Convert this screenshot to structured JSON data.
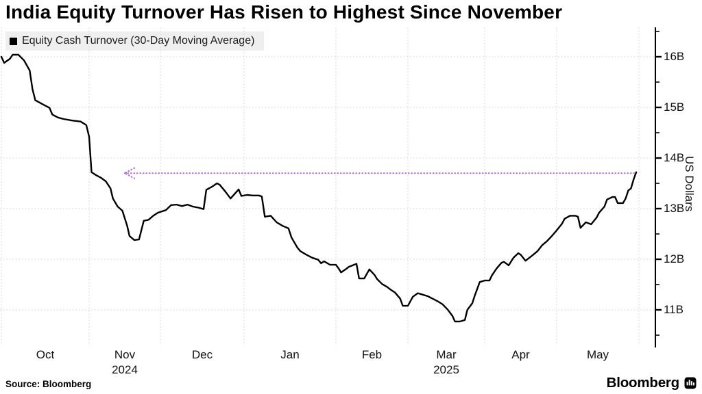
{
  "header": {
    "title": "India Equity Turnover Has Risen to Highest Since November"
  },
  "legend": {
    "swatch_color": "#000000",
    "label": "Equity Cash Turnover (30-Day Moving Average)"
  },
  "footer": {
    "source": "Source: Bloomberg",
    "brand": "Bloomberg",
    "brand_icon": "bloomberg-terminal-icon"
  },
  "chart_data": {
    "type": "line",
    "title": "India Equity Turnover Has Risen to Highest Since November",
    "ylabel": "US Dollars",
    "xlabel": "",
    "grid": "dotted",
    "legend_position": "top-left",
    "y_axis": {
      "side": "right",
      "min": 10.3,
      "max": 16.45,
      "unit": "B USD",
      "minor_tick_step": 0.5
    },
    "y_ticks": [
      {
        "value": 16,
        "label": "16B"
      },
      {
        "value": 15,
        "label": "15B"
      },
      {
        "value": 14,
        "label": "14B"
      },
      {
        "value": 13,
        "label": "13B"
      },
      {
        "value": 12,
        "label": "12B"
      },
      {
        "value": 11,
        "label": "11B"
      }
    ],
    "x_ticks": [
      {
        "label": "Oct",
        "year": "2024_start_implied"
      },
      {
        "label": "Nov",
        "year": "2024"
      },
      {
        "label": "Dec"
      },
      {
        "label": "Jan"
      },
      {
        "label": "Feb"
      },
      {
        "label": "Mar",
        "year": "2025"
      },
      {
        "label": "Apr"
      },
      {
        "label": "May"
      }
    ],
    "annotation": {
      "shape": "dotted-arrow-left",
      "y_value": 13.7,
      "x_head_date": "2024-11-16",
      "x_tail_date": "2025-05-31",
      "color": "#ae6fe0"
    },
    "series": [
      {
        "name": "Equity Cash Turnover (30-Day Moving Average)",
        "color": "#000000",
        "points": [
          [
            "2024-10-01",
            16.0
          ],
          [
            "2024-10-02",
            15.88
          ],
          [
            "2024-10-04",
            15.96
          ],
          [
            "2024-10-05",
            16.04
          ],
          [
            "2024-10-07",
            16.04
          ],
          [
            "2024-10-09",
            15.93
          ],
          [
            "2024-10-11",
            15.73
          ],
          [
            "2024-10-12",
            15.36
          ],
          [
            "2024-10-13",
            15.14
          ],
          [
            "2024-10-15",
            15.08
          ],
          [
            "2024-10-16",
            15.05
          ],
          [
            "2024-10-18",
            14.99
          ],
          [
            "2024-10-19",
            14.86
          ],
          [
            "2024-10-21",
            14.8
          ],
          [
            "2024-10-23",
            14.77
          ],
          [
            "2024-10-26",
            14.74
          ],
          [
            "2024-10-29",
            14.72
          ],
          [
            "2024-10-31",
            14.65
          ],
          [
            "2024-11-01",
            14.42
          ],
          [
            "2024-11-02",
            13.72
          ],
          [
            "2024-11-04",
            13.66
          ],
          [
            "2024-11-06",
            13.61
          ],
          [
            "2024-11-08",
            13.54
          ],
          [
            "2024-11-10",
            13.4
          ],
          [
            "2024-11-11",
            13.2
          ],
          [
            "2024-11-13",
            13.04
          ],
          [
            "2024-11-15",
            12.96
          ],
          [
            "2024-11-17",
            12.66
          ],
          [
            "2024-11-18",
            12.46
          ],
          [
            "2024-11-20",
            12.38
          ],
          [
            "2024-11-22",
            12.39
          ],
          [
            "2024-11-24",
            12.76
          ],
          [
            "2024-11-26",
            12.78
          ],
          [
            "2024-11-28",
            12.86
          ],
          [
            "2024-11-30",
            12.92
          ],
          [
            "2024-12-03",
            12.97
          ],
          [
            "2024-12-05",
            13.07
          ],
          [
            "2024-12-07",
            13.08
          ],
          [
            "2024-12-09",
            13.05
          ],
          [
            "2024-12-11",
            13.08
          ],
          [
            "2024-12-13",
            13.04
          ],
          [
            "2024-12-15",
            13.02
          ],
          [
            "2024-12-17",
            12.99
          ],
          [
            "2024-12-18",
            13.37
          ],
          [
            "2024-12-20",
            13.43
          ],
          [
            "2024-12-22",
            13.5
          ],
          [
            "2024-12-23",
            13.47
          ],
          [
            "2024-12-25",
            13.34
          ],
          [
            "2024-12-27",
            13.2
          ],
          [
            "2024-12-29",
            13.32
          ],
          [
            "2024-12-30",
            13.38
          ],
          [
            "2024-12-31",
            13.25
          ],
          [
            "2025-01-02",
            13.27
          ],
          [
            "2025-01-04",
            13.26
          ],
          [
            "2025-01-06",
            13.26
          ],
          [
            "2025-01-07",
            13.24
          ],
          [
            "2025-01-08",
            12.84
          ],
          [
            "2025-01-10",
            12.86
          ],
          [
            "2025-01-12",
            12.73
          ],
          [
            "2025-01-14",
            12.66
          ],
          [
            "2025-01-16",
            12.61
          ],
          [
            "2025-01-17",
            12.43
          ],
          [
            "2025-01-19",
            12.23
          ],
          [
            "2025-01-20",
            12.16
          ],
          [
            "2025-01-22",
            12.09
          ],
          [
            "2025-01-24",
            12.03
          ],
          [
            "2025-01-26",
            11.99
          ],
          [
            "2025-01-27",
            11.92
          ],
          [
            "2025-01-28",
            11.96
          ],
          [
            "2025-01-30",
            11.89
          ],
          [
            "2025-02-01",
            11.89
          ],
          [
            "2025-02-02",
            11.82
          ],
          [
            "2025-02-03",
            11.74
          ],
          [
            "2025-02-05",
            11.81
          ],
          [
            "2025-02-06",
            11.85
          ],
          [
            "2025-02-08",
            11.89
          ],
          [
            "2025-02-09",
            11.91
          ],
          [
            "2025-02-10",
            11.62
          ],
          [
            "2025-02-12",
            11.62
          ],
          [
            "2025-02-14",
            11.8
          ],
          [
            "2025-02-16",
            11.69
          ],
          [
            "2025-02-17",
            11.61
          ],
          [
            "2025-02-19",
            11.51
          ],
          [
            "2025-02-21",
            11.45
          ],
          [
            "2025-02-22",
            11.41
          ],
          [
            "2025-02-24",
            11.34
          ],
          [
            "2025-02-26",
            11.22
          ],
          [
            "2025-02-27",
            11.08
          ],
          [
            "2025-03-01",
            11.08
          ],
          [
            "2025-03-03",
            11.26
          ],
          [
            "2025-03-05",
            11.33
          ],
          [
            "2025-03-07",
            11.3
          ],
          [
            "2025-03-09",
            11.27
          ],
          [
            "2025-03-11",
            11.22
          ],
          [
            "2025-03-13",
            11.17
          ],
          [
            "2025-03-15",
            11.11
          ],
          [
            "2025-03-17",
            11.01
          ],
          [
            "2025-03-19",
            10.88
          ],
          [
            "2025-03-20",
            10.77
          ],
          [
            "2025-03-22",
            10.77
          ],
          [
            "2025-03-24",
            10.8
          ],
          [
            "2025-03-25",
            11.0
          ],
          [
            "2025-03-27",
            11.13
          ],
          [
            "2025-03-28",
            11.28
          ],
          [
            "2025-03-30",
            11.55
          ],
          [
            "2025-04-01",
            11.58
          ],
          [
            "2025-04-03",
            11.58
          ],
          [
            "2025-04-04",
            11.68
          ],
          [
            "2025-04-06",
            11.82
          ],
          [
            "2025-04-08",
            11.93
          ],
          [
            "2025-04-09",
            11.95
          ],
          [
            "2025-04-11",
            11.88
          ],
          [
            "2025-04-13",
            12.03
          ],
          [
            "2025-04-15",
            12.12
          ],
          [
            "2025-04-16",
            12.09
          ],
          [
            "2025-04-18",
            11.97
          ],
          [
            "2025-04-21",
            12.08
          ],
          [
            "2025-04-23",
            12.16
          ],
          [
            "2025-04-25",
            12.28
          ],
          [
            "2025-04-27",
            12.36
          ],
          [
            "2025-04-29",
            12.46
          ],
          [
            "2025-05-01",
            12.57
          ],
          [
            "2025-05-03",
            12.7
          ],
          [
            "2025-05-04",
            12.8
          ],
          [
            "2025-05-06",
            12.86
          ],
          [
            "2025-05-08",
            12.86
          ],
          [
            "2025-05-09",
            12.84
          ],
          [
            "2025-05-10",
            12.62
          ],
          [
            "2025-05-12",
            12.73
          ],
          [
            "2025-05-14",
            12.69
          ],
          [
            "2025-05-16",
            12.82
          ],
          [
            "2025-05-17",
            12.92
          ],
          [
            "2025-05-19",
            13.04
          ],
          [
            "2025-05-20",
            13.18
          ],
          [
            "2025-05-22",
            13.23
          ],
          [
            "2025-05-23",
            13.23
          ],
          [
            "2025-05-24",
            13.11
          ],
          [
            "2025-05-26",
            13.11
          ],
          [
            "2025-05-27",
            13.2
          ],
          [
            "2025-05-28",
            13.36
          ],
          [
            "2025-05-29",
            13.4
          ],
          [
            "2025-05-30",
            13.58
          ],
          [
            "2025-05-31",
            13.72
          ]
        ]
      }
    ]
  }
}
